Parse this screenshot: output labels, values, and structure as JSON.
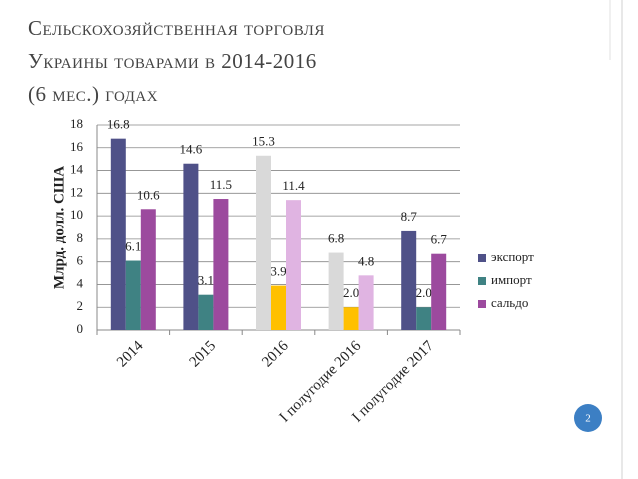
{
  "page_number": "2",
  "title": "Сельскохозяйственная торговля Украины товарами в 2014-2016 (6 мес.) годах",
  "chart_data": {
    "type": "bar",
    "y_axis_label": "Млрд. долл. США",
    "categories": [
      "2014",
      "2015",
      "2016",
      "I полугодие 2016",
      "I полугодие 2017"
    ],
    "series": [
      {
        "name": "экспорт",
        "color": "#4f5188",
        "values": [
          16.8,
          14.6,
          15.3,
          6.8,
          8.7
        ],
        "colors": [
          "#4f5188",
          "#4f5188",
          "#d9d9d9",
          "#d9d9d9",
          "#4f5188"
        ]
      },
      {
        "name": "импорт",
        "color": "#3f8283",
        "values": [
          6.1,
          3.1,
          3.9,
          2.0,
          2.0
        ],
        "value_labels": [
          "6.1",
          "3.1",
          "3.9",
          "2.0",
          "2.0"
        ],
        "colors": [
          "#3f8283",
          "#3f8283",
          "#ffc000",
          "#ffc000",
          "#3f8283"
        ]
      },
      {
        "name": "сальдо",
        "color": "#9c4a9e",
        "values": [
          10.6,
          11.5,
          11.4,
          4.8,
          6.7
        ],
        "colors": [
          "#9c4a9e",
          "#9c4a9e",
          "#e0b4e2",
          "#e0b4e2",
          "#9c4a9e"
        ]
      }
    ],
    "ylim": [
      0,
      18
    ],
    "yticks": [
      0,
      2,
      4,
      6,
      8,
      10,
      12,
      14,
      16,
      18
    ],
    "grid": true,
    "legend": "right"
  }
}
